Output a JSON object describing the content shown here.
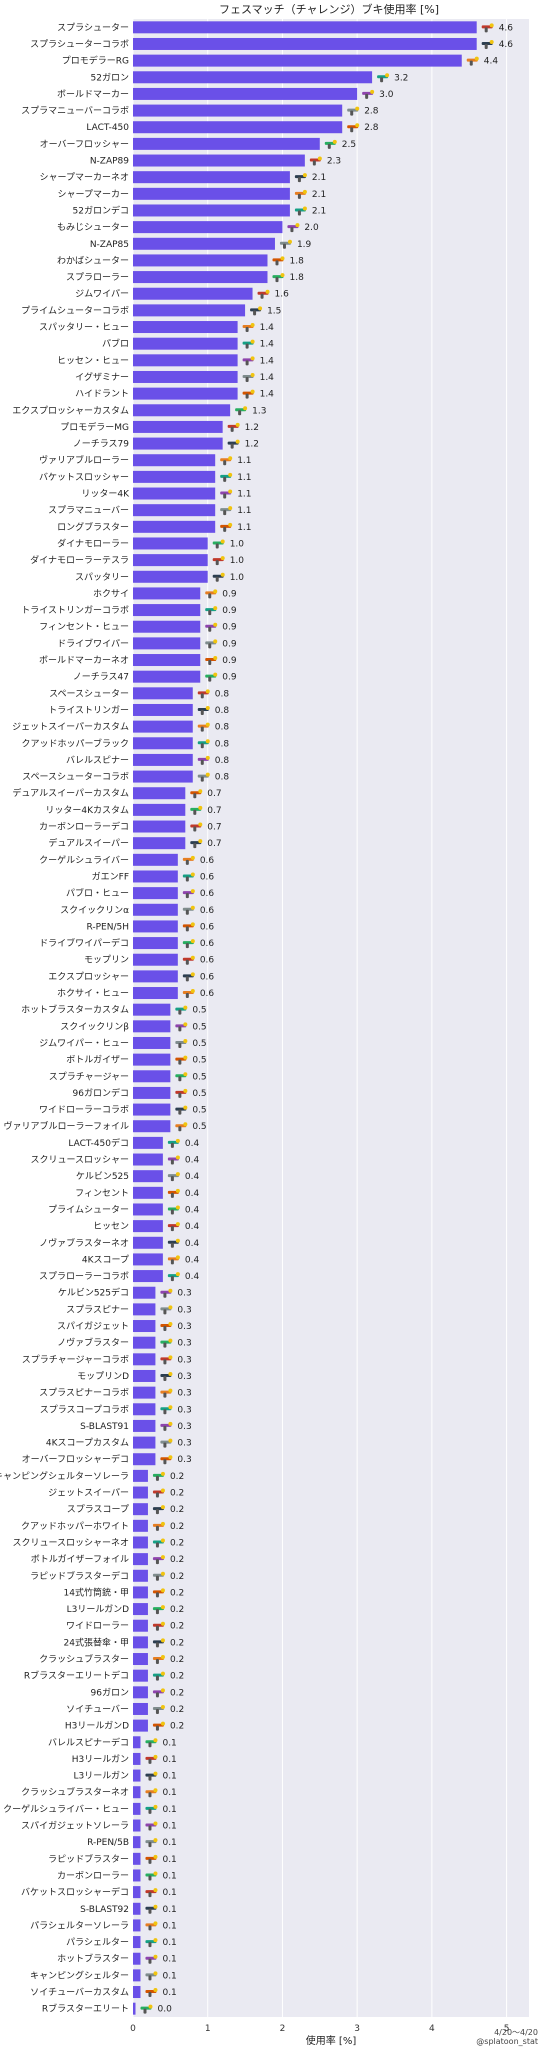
{
  "chart_data": {
    "type": "bar",
    "orientation": "horizontal",
    "title": "フェスマッチ（チャレンジ）ブキ使用率 [%]",
    "xlabel": "使用率 [%]",
    "ylabel": "",
    "xlim": [
      0,
      5.3
    ],
    "xticks": [
      "0",
      "1",
      "2",
      "3",
      "4",
      "5"
    ],
    "grid": true,
    "background": "#eaeaf2",
    "bar_color": "#6a50e8",
    "period": "4/20〜4/20",
    "credit": "@splatoon_stat",
    "categories": [
      "スプラシューター",
      "スプラシューターコラボ",
      "プロモデラーRG",
      "52ガロン",
      "ボールドマーカー",
      "スプラマニューバーコラボ",
      "LACT-450",
      "オーバーフロッシャー",
      "N-ZAP89",
      "シャープマーカーネオ",
      "シャープマーカー",
      "52ガロンデコ",
      "もみじシューター",
      "N-ZAP85",
      "わかばシューター",
      "スプラローラー",
      "ジムワイパー",
      "プライムシューターコラボ",
      "スパッタリー・ヒュー",
      "パブロ",
      "ヒッセン・ヒュー",
      "イグザミナー",
      "ハイドラント",
      "エクスプロッシャーカスタム",
      "プロモデラーMG",
      "ノーチラス79",
      "ヴァリアブルローラー",
      "バケットスロッシャー",
      "リッター4K",
      "スプラマニューバー",
      "ロングブラスター",
      "ダイナモローラー",
      "ダイナモローラーテスラ",
      "スパッタリー",
      "ホクサイ",
      "トライストリンガーコラボ",
      "フィンセント・ヒュー",
      "ドライブワイパー",
      "ボールドマーカーネオ",
      "ノーチラス47",
      "スペースシューター",
      "トライストリンガー",
      "ジェットスイーパーカスタム",
      "クアッドホッパーブラック",
      "バレルスピナー",
      "スペースシューターコラボ",
      "デュアルスイーパーカスタム",
      "リッター4Kカスタム",
      "カーボンローラーデコ",
      "デュアルスイーパー",
      "クーゲルシュライバー",
      "ガエンFF",
      "パブロ・ヒュー",
      "スクイックリンα",
      "R-PEN/5H",
      "ドライブワイパーデコ",
      "モップリン",
      "エクスプロッシャー",
      "ホクサイ・ヒュー",
      "ホットブラスターカスタム",
      "スクイックリンβ",
      "ジムワイパー・ヒュー",
      "ボトルガイザー",
      "スプラチャージャー",
      "96ガロンデコ",
      "ワイドローラーコラボ",
      "ヴァリアブルローラーフォイル",
      "LACT-450デコ",
      "スクリュースロッシャー",
      "ケルビン525",
      "フィンセント",
      "プライムシューター",
      "ヒッセン",
      "ノヴァブラスターネオ",
      "4Kスコープ",
      "スプラローラーコラボ",
      "ケルビン525デコ",
      "スプラスピナー",
      "スパイガジェット",
      "ノヴァブラスター",
      "スプラチャージャーコラボ",
      "モップリンD",
      "スプラスピナーコラボ",
      "スプラスコープコラボ",
      "S-BLAST91",
      "4Kスコープカスタム",
      "オーバーフロッシャーデコ",
      "キャンピングシェルターソレーラ",
      "ジェットスイーパー",
      "スプラスコープ",
      "クアッドホッパーホワイト",
      "スクリュースロッシャーネオ",
      "ボトルガイザーフォイル",
      "ラピッドブラスターデコ",
      "14式竹筒銃・甲",
      "L3リールガンD",
      "ワイドローラー",
      "24式張替傘・甲",
      "クラッシュブラスター",
      "Rブラスターエリートデコ",
      "96ガロン",
      "ソイチューバー",
      "H3リールガンD",
      "バレルスピナーデコ",
      "H3リールガン",
      "L3リールガン",
      "クラッシュブラスターネオ",
      "クーゲルシュライバー・ヒュー",
      "スパイガジェットソレーラ",
      "R-PEN/5B",
      "ラピッドブラスター",
      "カーボンローラー",
      "バケットスロッシャーデコ",
      "S-BLAST92",
      "パラシェルターソレーラ",
      "パラシェルター",
      "ホットブラスター",
      "キャンピングシェルター",
      "ソイチューバーカスタム",
      "Rブラスターエリート"
    ],
    "values": [
      4.6,
      4.6,
      4.4,
      3.2,
      3.0,
      2.8,
      2.8,
      2.5,
      2.3,
      2.1,
      2.1,
      2.1,
      2.0,
      1.9,
      1.8,
      1.8,
      1.6,
      1.5,
      1.4,
      1.4,
      1.4,
      1.4,
      1.4,
      1.3,
      1.2,
      1.2,
      1.1,
      1.1,
      1.1,
      1.1,
      1.1,
      1.0,
      1.0,
      1.0,
      0.9,
      0.9,
      0.9,
      0.9,
      0.9,
      0.9,
      0.8,
      0.8,
      0.8,
      0.8,
      0.8,
      0.8,
      0.7,
      0.7,
      0.7,
      0.7,
      0.6,
      0.6,
      0.6,
      0.6,
      0.6,
      0.6,
      0.6,
      0.6,
      0.6,
      0.5,
      0.5,
      0.5,
      0.5,
      0.5,
      0.5,
      0.5,
      0.5,
      0.4,
      0.4,
      0.4,
      0.4,
      0.4,
      0.4,
      0.4,
      0.4,
      0.4,
      0.3,
      0.3,
      0.3,
      0.3,
      0.3,
      0.3,
      0.3,
      0.3,
      0.3,
      0.3,
      0.3,
      0.2,
      0.2,
      0.2,
      0.2,
      0.2,
      0.2,
      0.2,
      0.2,
      0.2,
      0.2,
      0.2,
      0.2,
      0.2,
      0.2,
      0.2,
      0.2,
      0.1,
      0.1,
      0.1,
      0.1,
      0.1,
      0.1,
      0.1,
      0.1,
      0.1,
      0.1,
      0.1,
      0.1,
      0.1,
      0.1,
      0.1,
      0.1,
      0.0
    ],
    "bar_value_labels": [
      "4.6",
      "4.6",
      "4.4",
      "3.2",
      "3.0",
      "2.8",
      "2.8",
      "2.5",
      "2.3",
      "2.1",
      "2.1",
      "2.1",
      "2.0",
      "1.9",
      "1.8",
      "1.8",
      "1.6",
      "1.5",
      "1.4",
      "1.4",
      "1.4",
      "1.4",
      "1.4",
      "1.3",
      "1.2",
      "1.2",
      "1.1",
      "1.1",
      "1.1",
      "1.1",
      "1.1",
      "1.0",
      "1.0",
      "1.0",
      "0.9",
      "0.9",
      "0.9",
      "0.9",
      "0.9",
      "0.9",
      "0.8",
      "0.8",
      "0.8",
      "0.8",
      "0.8",
      "0.8",
      "0.7",
      "0.7",
      "0.7",
      "0.7",
      "0.6",
      "0.6",
      "0.6",
      "0.6",
      "0.6",
      "0.6",
      "0.6",
      "0.6",
      "0.6",
      "0.5",
      "0.5",
      "0.5",
      "0.5",
      "0.5",
      "0.5",
      "0.5",
      "0.5",
      "0.4",
      "0.4",
      "0.4",
      "0.4",
      "0.4",
      "0.4",
      "0.4",
      "0.4",
      "0.4",
      "0.3",
      "0.3",
      "0.3",
      "0.3",
      "0.3",
      "0.3",
      "0.3",
      "0.3",
      "0.3",
      "0.3",
      "0.3",
      "0.2",
      "0.2",
      "0.2",
      "0.2",
      "0.2",
      "0.2",
      "0.2",
      "0.2",
      "0.2",
      "0.2",
      "0.2",
      "0.2",
      "0.2",
      "0.2",
      "0.2",
      "0.2",
      "0.1",
      "0.1",
      "0.1",
      "0.1",
      "0.1",
      "0.1",
      "0.1",
      "0.1",
      "0.1",
      "0.1",
      "0.1",
      "0.1",
      "0.1",
      "0.1",
      "0.1",
      "0.1",
      "0.0"
    ],
    "icon_palette": [
      "#c0392b",
      "#2c3e50",
      "#e67e22",
      "#16a085",
      "#8e44ad",
      "#7f8c8d",
      "#d35400",
      "#27ae60"
    ]
  }
}
